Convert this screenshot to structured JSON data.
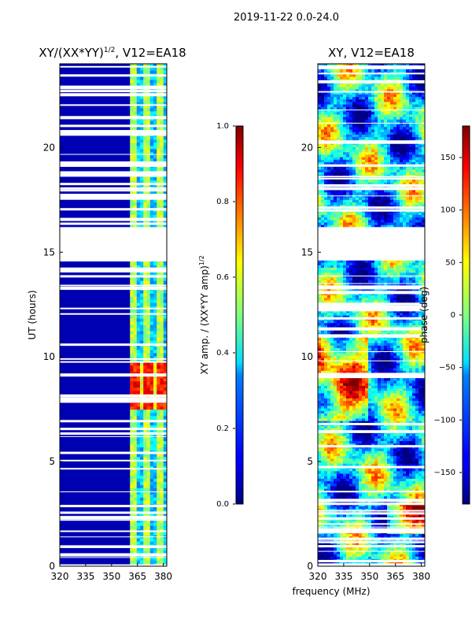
{
  "page_title": "2019-11-22 0.0-24.0",
  "xlabel": "frequency (MHz)",
  "chart_data": [
    {
      "type": "heatmap",
      "title_main": "XY/(XX*YY)",
      "title_sup": "1/2",
      "title_tail": ", V12=EA18",
      "ylabel": "UT (hours)",
      "xlim": [
        320,
        382
      ],
      "ylim": [
        0,
        24
      ],
      "x_ticks": [
        320,
        335,
        350,
        365,
        380
      ],
      "y_ticks": [
        0,
        5,
        10,
        15,
        20
      ],
      "colorbar": {
        "label_main": "XY amp. / (XX*YY amp)",
        "label_sup": "1/2",
        "range": [
          0.0,
          1.0
        ],
        "ticks": [
          "0.0",
          "0.2",
          "0.4",
          "0.6",
          "0.8",
          "1.0"
        ],
        "colormap": "jet"
      },
      "missing_ut_range": [
        14.7,
        16.2
      ],
      "active_freq_band": [
        362,
        382
      ],
      "peak_region": {
        "freq": [
          362,
          382
        ],
        "ut": [
          7.5,
          9.8
        ],
        "value": 0.85
      },
      "background_value": 0.05
    },
    {
      "type": "heatmap",
      "title": "XY, V12=EA18",
      "ylabel": "",
      "xlim": [
        320,
        382
      ],
      "ylim": [
        0,
        24
      ],
      "x_ticks": [
        320,
        335,
        350,
        365,
        380
      ],
      "y_ticks": [
        0,
        5,
        10,
        15,
        20
      ],
      "colorbar": {
        "label": "phase (deg)",
        "range": [
          -180,
          180
        ],
        "ticks": [
          "−150",
          "−100",
          "−50",
          "0",
          "50",
          "100",
          "150"
        ],
        "colormap": "jet"
      },
      "missing_ut_range": [
        14.7,
        16.2
      ]
    }
  ],
  "colors": {
    "background": "#ffffff",
    "axis": "#000000",
    "gap": "#ffffff"
  }
}
